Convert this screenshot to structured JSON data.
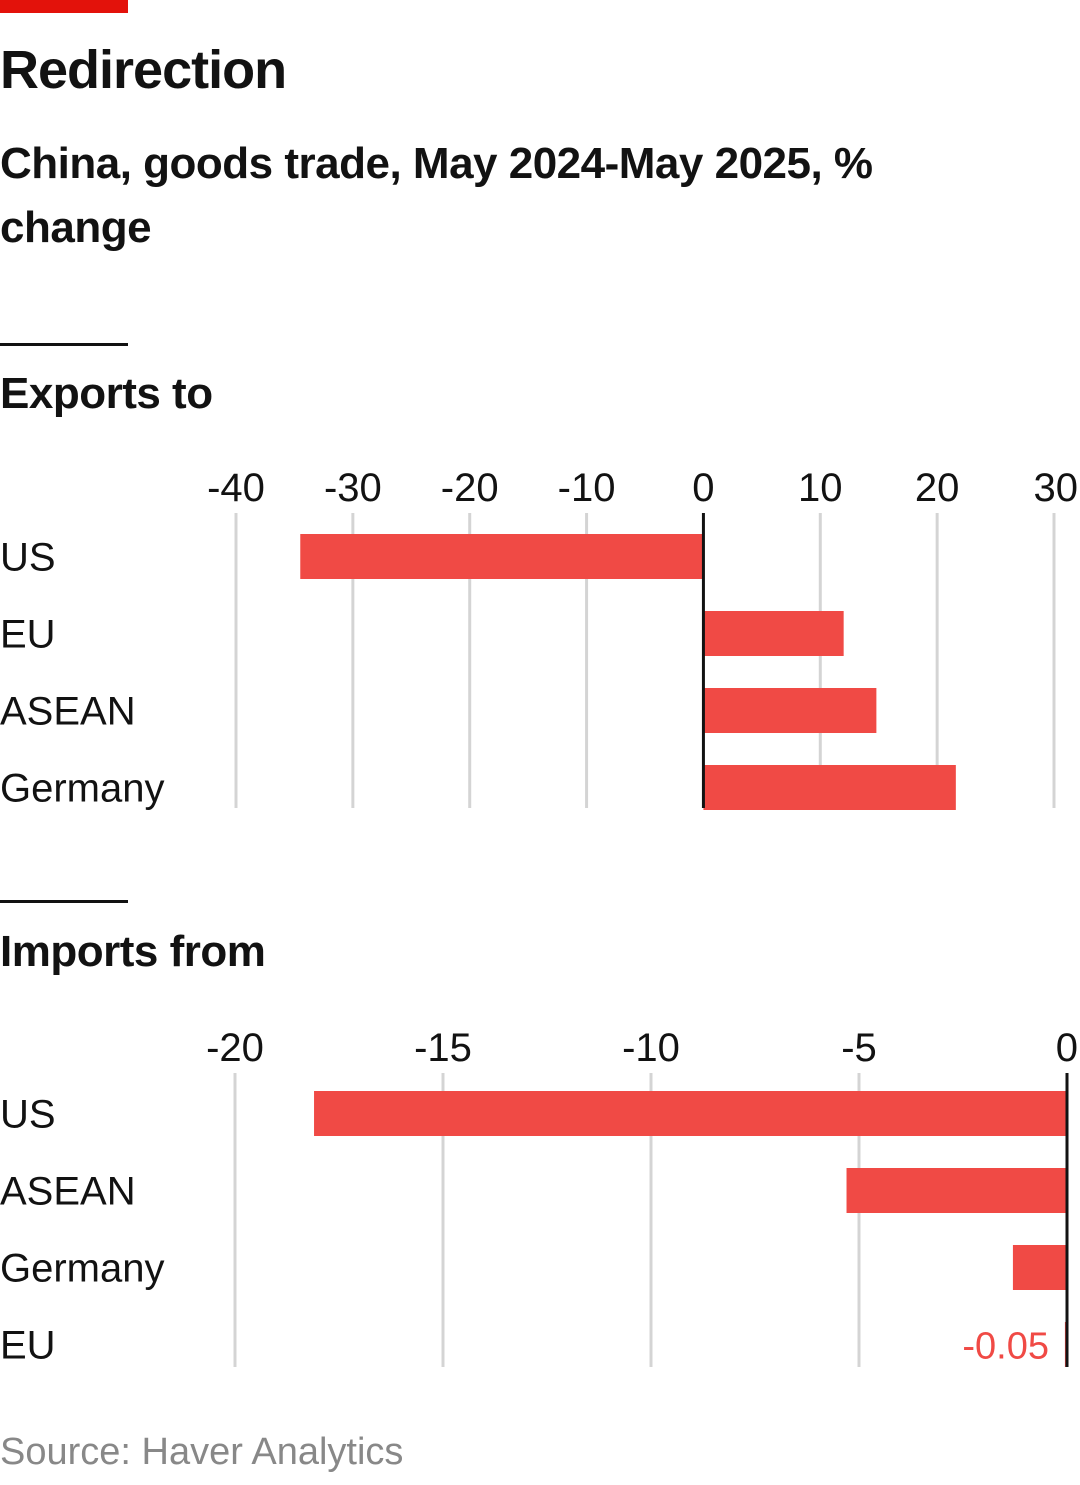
{
  "title": "Redirection",
  "subtitle": "China, goods trade, May 2024-May 2025, % change",
  "source": "Source: Haver Analytics",
  "colors": {
    "accent": "#e3120b",
    "bar": "#f04a45",
    "grid": "#d4d4d4",
    "axis": "#121212",
    "source": "#888888"
  },
  "chart_data": [
    {
      "type": "bar",
      "orientation": "horizontal",
      "title": "Exports to",
      "categories": [
        "US",
        "EU",
        "ASEAN",
        "Germany"
      ],
      "values": [
        -34.5,
        12,
        14.8,
        21.6
      ],
      "xlim": [
        -40,
        30
      ],
      "ticks": [
        "-40",
        "-30",
        "-20",
        "-10",
        "0",
        "10",
        "20",
        "30"
      ],
      "grid": true
    },
    {
      "type": "bar",
      "orientation": "horizontal",
      "title": "Imports from",
      "categories": [
        "US",
        "ASEAN",
        "Germany",
        "EU"
      ],
      "values": [
        -18.1,
        -5.3,
        -1.3,
        -0.05
      ],
      "xlim": [
        -20,
        0
      ],
      "ticks": [
        "-20",
        "-15",
        "-10",
        "-5",
        "0"
      ],
      "grid": true,
      "annotations": [
        {
          "category": "EU",
          "text": "-0.05"
        }
      ]
    }
  ]
}
